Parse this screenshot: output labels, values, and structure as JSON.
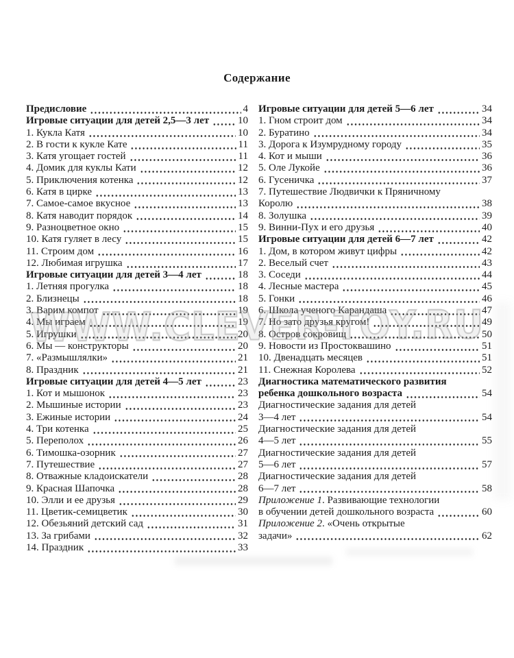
{
  "page_title": "Содержание",
  "watermark_text": "WWW.CLEVER-TOY.RU",
  "colors": {
    "background": "#ffffff",
    "text": "#1c1c1c",
    "dot_leader": "#2e2e2e",
    "watermark": "#a5a5a5"
  },
  "toc": {
    "left": [
      {
        "label": "Предисловие",
        "page": "4",
        "bold": true
      },
      {
        "label": "Игровые ситуации для детей 2,5—3 лет",
        "page": "10",
        "bold": true
      },
      {
        "label": "1. Кукла Катя",
        "page": "10"
      },
      {
        "label": "2. В гости к кукле Кате",
        "page": "11"
      },
      {
        "label": "3. Катя угощает гостей",
        "page": "11"
      },
      {
        "label": "4. Домик для куклы Кати",
        "page": "12"
      },
      {
        "label": "5. Приключения котенка",
        "page": "12"
      },
      {
        "label": "6. Катя в цирке",
        "page": "13"
      },
      {
        "label": "7. Самое-самое вкусное",
        "page": "13"
      },
      {
        "label": "8. Катя наводит порядок",
        "page": "14"
      },
      {
        "label": "9. Разноцветное окно",
        "page": "15"
      },
      {
        "label": "10. Катя гуляет в лесу",
        "page": "15"
      },
      {
        "label": "11. Строим дом",
        "page": "16"
      },
      {
        "label": "12. Любимая игрушка",
        "page": "17"
      },
      {
        "label": "Игровые ситуации для детей 3—4 лет",
        "page": "18",
        "bold": true
      },
      {
        "label": "1. Летняя прогулка",
        "page": "18"
      },
      {
        "label": "2. Близнецы",
        "page": "18"
      },
      {
        "label": "3. Варим компот",
        "page": "19"
      },
      {
        "label": "4. Мы играем",
        "page": "19"
      },
      {
        "label": "5. Игрушки",
        "page": "20"
      },
      {
        "label": "6. Мы — конструкторы",
        "page": "20"
      },
      {
        "label": "7. «Размышлялки»",
        "page": "21"
      },
      {
        "label": "8. Праздник",
        "page": "21"
      },
      {
        "label": "Игровые ситуации для детей 4—5 лет",
        "page": "23",
        "bold": true
      },
      {
        "label": "1. Кот и мышонок",
        "page": "23"
      },
      {
        "label": "2. Мышиные истории",
        "page": "23"
      },
      {
        "label": "3. Ежиные истории",
        "page": "24"
      },
      {
        "label": "4. Три котенка",
        "page": "25"
      },
      {
        "label": "5. Переполох",
        "page": "26"
      },
      {
        "label": "6. Тимошка-озорник",
        "page": "27"
      },
      {
        "label": "7. Путешествие",
        "page": "27"
      },
      {
        "label": "8. Отважные кладоискатели",
        "page": "28"
      },
      {
        "label": "9. Красная Шапочка",
        "page": "28"
      },
      {
        "label": "10. Элли и ее друзья",
        "page": "29"
      },
      {
        "label": "11. Цветик-семицветик",
        "page": "30"
      },
      {
        "label": "12. Обезьяний детский сад",
        "page": "31"
      },
      {
        "label": "13. За грибами",
        "page": "32"
      },
      {
        "label": "14. Праздник",
        "page": "33"
      }
    ],
    "right": [
      {
        "label": "Игровые ситуации для детей 5—6 лет",
        "page": "34",
        "bold": true
      },
      {
        "label": "1. Гном строит дом",
        "page": "34"
      },
      {
        "label": "2. Буратино",
        "page": "34"
      },
      {
        "label": "3. Дорога к Изумрудному городу",
        "page": "35"
      },
      {
        "label": "4. Кот и мыши",
        "page": "36"
      },
      {
        "label": "5. Оле Лукойе",
        "page": "36"
      },
      {
        "label": "6. Гусеничка",
        "page": "37"
      },
      {
        "label": "7. Путешествие Людвички к Пряничному",
        "page": ""
      },
      {
        "label": "Королю",
        "page": "38"
      },
      {
        "label": "8. Золушка",
        "page": "39"
      },
      {
        "label": "9. Винни-Пух и его друзья",
        "page": "40"
      },
      {
        "label": "Игровые ситуации для детей 6—7 лет",
        "page": "42",
        "bold": true
      },
      {
        "label": "1. Дом, в котором живут цифры",
        "page": "42"
      },
      {
        "label": "2. Веселый счет",
        "page": "43"
      },
      {
        "label": "3. Соседи",
        "page": "44"
      },
      {
        "label": "4. Лесные мастера",
        "page": "45"
      },
      {
        "label": "5. Гонки",
        "page": "46"
      },
      {
        "label": "6. Школа ученого Карандаша",
        "page": "47"
      },
      {
        "label": "7. Но зато друзья кругом!",
        "page": "49"
      },
      {
        "label": "8. Остров сокровищ",
        "page": "50"
      },
      {
        "label": "9. Новости из Простоквашино",
        "page": "51"
      },
      {
        "label": "10. Двенадцать месяцев",
        "page": "51"
      },
      {
        "label": "11. Снежная Королева",
        "page": "52"
      },
      {
        "label": "Диагностика математического развития",
        "page": "",
        "bold": true
      },
      {
        "label": "ребенка дошкольного возраста",
        "page": "54",
        "bold": true
      },
      {
        "label": "Диагностические задания для детей",
        "page": ""
      },
      {
        "label": "3—4 лет",
        "page": "54"
      },
      {
        "label": "Диагностические задания для детей",
        "page": ""
      },
      {
        "label": "4—5 лет",
        "page": "55"
      },
      {
        "label": "Диагностические задания для детей",
        "page": ""
      },
      {
        "label": "5—6 лет",
        "page": "57"
      },
      {
        "label": "Диагностические задания для детей",
        "page": ""
      },
      {
        "label": "6—7 лет",
        "page": "58"
      },
      {
        "italic": "Приложение 1",
        "label": ". Развивающие технологии",
        "page": ""
      },
      {
        "label": "в обучении детей дошкольного возраста",
        "page": "60"
      },
      {
        "italic": "Приложение 2",
        "label": ". «Очень открытые",
        "page": ""
      },
      {
        "label": "задачи»",
        "page": "62"
      }
    ]
  }
}
